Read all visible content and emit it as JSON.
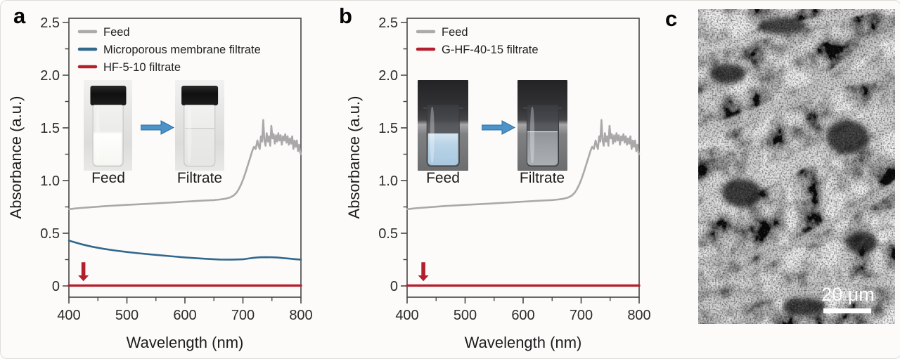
{
  "figure": {
    "background": "#fcfbf9"
  },
  "icons": {
    "inset_arrow": "right-arrow",
    "annotation_arrow": "down-arrow"
  },
  "panels": {
    "a": {
      "label": "a",
      "inset": {
        "feed": "Feed",
        "filtrate": "Filtrate"
      }
    },
    "b": {
      "label": "b",
      "inset": {
        "feed": "Feed",
        "filtrate": "Filtrate"
      }
    },
    "c": {
      "label": "c",
      "scale_bar": "20 μm"
    }
  },
  "chart_data": [
    {
      "id": "a",
      "type": "line",
      "xlabel": "Wavelength (nm)",
      "ylabel": "Absorbance (a.u.)",
      "xlim": [
        400,
        800
      ],
      "ylim": [
        -0.11,
        2.55
      ],
      "grid": false,
      "legend_position": "top-left",
      "xticks": {
        "major": [
          400,
          500,
          600,
          700,
          800
        ],
        "labels": [
          "400",
          "500",
          "600",
          "700",
          "800"
        ],
        "minor": [
          450,
          550,
          650,
          750
        ]
      },
      "yticks": {
        "major": [
          0,
          0.5,
          1.0,
          1.5,
          2.0,
          2.5
        ],
        "labels": [
          "0",
          "0.5",
          "1.0",
          "1.5",
          "2.0",
          "2.5"
        ],
        "minor": [
          0.25,
          0.75,
          1.25,
          1.75,
          2.25
        ]
      },
      "legend": [
        {
          "name": "Feed",
          "color": "#ababab"
        },
        {
          "name": "Microporous membrane filtrate",
          "color": "#31688e"
        },
        {
          "name": "HF-5-10 filtrate",
          "color": "#b41f2e"
        }
      ],
      "series": [
        {
          "name": "Feed",
          "color": "#a9a9a9",
          "width": 2.6,
          "x": [
            400,
            410,
            420,
            430,
            440,
            450,
            460,
            470,
            480,
            490,
            500,
            510,
            520,
            530,
            540,
            550,
            560,
            570,
            580,
            590,
            600,
            610,
            620,
            630,
            640,
            650,
            660,
            670,
            678,
            684,
            689,
            693,
            697,
            701,
            705,
            709,
            713,
            716,
            719,
            722,
            725,
            727,
            729,
            731,
            733,
            735,
            737,
            739,
            741,
            743,
            745,
            747,
            749,
            751,
            753,
            755,
            757,
            759,
            761,
            763,
            765,
            767,
            769,
            771,
            773,
            775,
            777,
            779,
            781,
            783,
            785,
            787,
            789,
            791,
            793,
            795,
            797,
            799,
            800
          ],
          "y": [
            0.728,
            0.735,
            0.74,
            0.744,
            0.748,
            0.752,
            0.756,
            0.76,
            0.763,
            0.766,
            0.769,
            0.772,
            0.775,
            0.778,
            0.781,
            0.784,
            0.787,
            0.79,
            0.793,
            0.796,
            0.8,
            0.803,
            0.806,
            0.809,
            0.812,
            0.815,
            0.82,
            0.828,
            0.84,
            0.858,
            0.885,
            0.92,
            0.965,
            1.02,
            1.085,
            1.155,
            1.225,
            1.28,
            1.32,
            1.3,
            1.38,
            1.33,
            1.3,
            1.42,
            1.37,
            1.575,
            1.38,
            1.33,
            1.45,
            1.37,
            1.42,
            1.33,
            1.52,
            1.4,
            1.44,
            1.35,
            1.43,
            1.37,
            1.45,
            1.38,
            1.43,
            1.34,
            1.42,
            1.38,
            1.44,
            1.36,
            1.42,
            1.34,
            1.4,
            1.35,
            1.42,
            1.3,
            1.38,
            1.32,
            1.38,
            1.28,
            1.34,
            1.26,
            1.25
          ]
        },
        {
          "name": "Microporous membrane filtrate",
          "color": "#31688e",
          "width": 2.6,
          "x": [
            400,
            420,
            440,
            460,
            480,
            500,
            520,
            540,
            560,
            580,
            600,
            620,
            640,
            660,
            680,
            700,
            710,
            720,
            730,
            740,
            750,
            760,
            770,
            780,
            790,
            800
          ],
          "y": [
            0.43,
            0.398,
            0.372,
            0.352,
            0.336,
            0.322,
            0.31,
            0.299,
            0.289,
            0.28,
            0.271,
            0.263,
            0.256,
            0.251,
            0.249,
            0.253,
            0.261,
            0.268,
            0.272,
            0.273,
            0.272,
            0.269,
            0.264,
            0.259,
            0.254,
            0.249
          ]
        },
        {
          "name": "HF-5-10 filtrate",
          "color": "#b41f2e",
          "width": 3.4,
          "x": [
            400,
            800
          ],
          "y": [
            0.004,
            0.004
          ]
        }
      ],
      "arrow": {
        "x": 425,
        "y_from": 0.225,
        "y_head": 0.1,
        "y_to": 0.045,
        "color": "#b41f2e"
      }
    },
    {
      "id": "b",
      "type": "line",
      "xlabel": "Wavelength (nm)",
      "ylabel": "Absorbance (a.u.)",
      "xlim": [
        400,
        800
      ],
      "ylim": [
        -0.11,
        2.55
      ],
      "grid": false,
      "legend_position": "top-left",
      "xticks": {
        "major": [
          400,
          500,
          600,
          700,
          800
        ],
        "labels": [
          "400",
          "500",
          "600",
          "700",
          "800"
        ],
        "minor": [
          450,
          550,
          650,
          750
        ]
      },
      "yticks": {
        "major": [
          0,
          0.5,
          1.0,
          1.5,
          2.0,
          2.5
        ],
        "labels": [
          "0",
          "0.5",
          "1.0",
          "1.5",
          "2.0",
          "2.5"
        ],
        "minor": [
          0.25,
          0.75,
          1.25,
          1.75,
          2.25
        ]
      },
      "legend": [
        {
          "name": "Feed",
          "color": "#ababab"
        },
        {
          "name": "G-HF-40-15 filtrate",
          "color": "#b41f2e"
        }
      ],
      "series": [
        {
          "name": "Feed",
          "color": "#a9a9a9",
          "width": 2.6,
          "x": [
            400,
            410,
            420,
            430,
            440,
            450,
            460,
            470,
            480,
            490,
            500,
            510,
            520,
            530,
            540,
            550,
            560,
            570,
            580,
            590,
            600,
            610,
            620,
            630,
            640,
            650,
            660,
            670,
            678,
            684,
            689,
            693,
            697,
            701,
            705,
            709,
            713,
            716,
            719,
            722,
            725,
            727,
            729,
            731,
            733,
            735,
            737,
            739,
            741,
            743,
            745,
            747,
            749,
            751,
            753,
            755,
            757,
            759,
            761,
            763,
            765,
            767,
            769,
            771,
            773,
            775,
            777,
            779,
            781,
            783,
            785,
            787,
            789,
            791,
            793,
            795,
            797,
            799,
            800
          ],
          "y": [
            0.728,
            0.735,
            0.74,
            0.744,
            0.748,
            0.752,
            0.756,
            0.76,
            0.763,
            0.766,
            0.769,
            0.772,
            0.775,
            0.778,
            0.781,
            0.784,
            0.787,
            0.79,
            0.793,
            0.796,
            0.8,
            0.803,
            0.806,
            0.809,
            0.812,
            0.815,
            0.82,
            0.828,
            0.84,
            0.858,
            0.885,
            0.92,
            0.965,
            1.02,
            1.085,
            1.155,
            1.225,
            1.28,
            1.32,
            1.3,
            1.38,
            1.33,
            1.3,
            1.42,
            1.37,
            1.575,
            1.38,
            1.33,
            1.45,
            1.37,
            1.42,
            1.33,
            1.52,
            1.4,
            1.44,
            1.35,
            1.43,
            1.37,
            1.45,
            1.38,
            1.43,
            1.34,
            1.42,
            1.38,
            1.44,
            1.36,
            1.42,
            1.34,
            1.4,
            1.35,
            1.42,
            1.3,
            1.38,
            1.32,
            1.38,
            1.28,
            1.34,
            1.26,
            1.25
          ]
        },
        {
          "name": "G-HF-40-15 filtrate",
          "color": "#b41f2e",
          "width": 3.4,
          "x": [
            400,
            800
          ],
          "y": [
            0.004,
            0.004
          ]
        }
      ],
      "arrow": {
        "x": 428,
        "y_from": 0.225,
        "y_head": 0.1,
        "y_to": 0.045,
        "color": "#b41f2e"
      }
    }
  ]
}
